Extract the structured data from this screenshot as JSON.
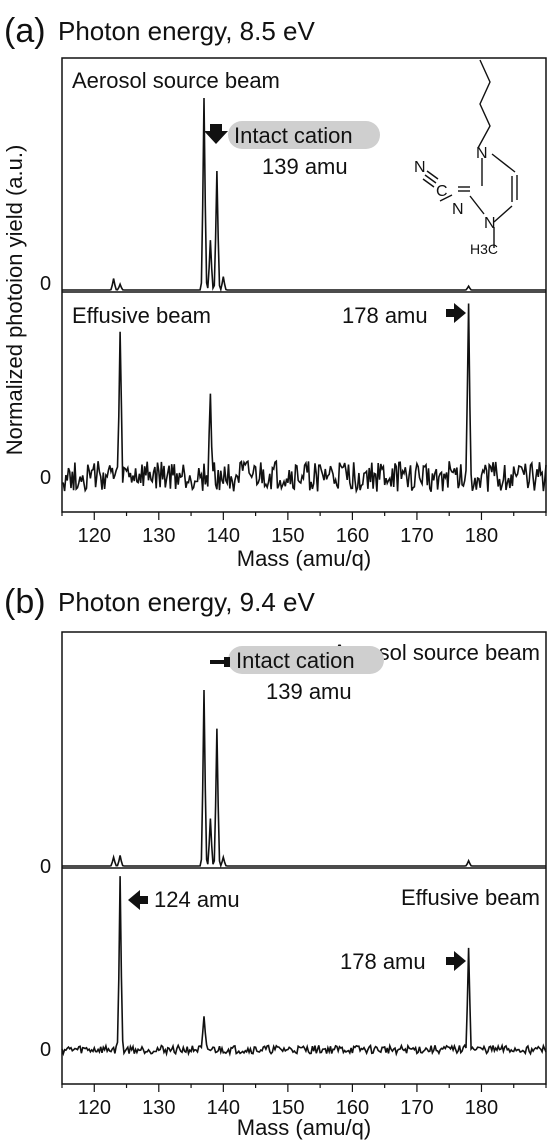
{
  "chart_data": [
    {
      "type": "line",
      "panel_label": "(a)",
      "title": "Photon energy, 8.5 eV",
      "xlabel": "Mass (amu/q)",
      "ylabel": "Normalized photoion yield (a.u.)",
      "xlim": [
        115,
        190
      ],
      "xticks": [
        120,
        130,
        140,
        150,
        160,
        170,
        180
      ],
      "subplots": [
        {
          "name": "Aerosol source beam",
          "zero_label": "0",
          "peaks": [
            {
              "mass": 123,
              "height": 0.06
            },
            {
              "mass": 124,
              "height": 0.03
            },
            {
              "mass": 137,
              "height": 1.0
            },
            {
              "mass": 138,
              "height": 0.26
            },
            {
              "mass": 139,
              "height": 0.62
            },
            {
              "mass": 140,
              "height": 0.07
            },
            {
              "mass": 178,
              "height": 0.02
            }
          ],
          "noise": 0.0,
          "annotations": {
            "arrow_text": "Intact cation",
            "mass_text": "139 amu"
          }
        },
        {
          "name": "Effusive beam",
          "zero_label": "0",
          "peaks": [
            {
              "mass": 124,
              "height": 0.78
            },
            {
              "mass": 138,
              "height": 0.45
            },
            {
              "mass": 178,
              "height": 1.0
            }
          ],
          "noise": 0.18,
          "annotations": {
            "arrow_text": "178 amu"
          }
        }
      ]
    },
    {
      "type": "line",
      "panel_label": "(b)",
      "title": "Photon energy, 9.4 eV",
      "xlabel": "Mass (amu/q)",
      "ylabel": "Normalized photoion yield (a.u.)",
      "xlim": [
        115,
        190
      ],
      "xticks": [
        120,
        130,
        140,
        150,
        160,
        170,
        180
      ],
      "subplots": [
        {
          "name": "Aerosol source beam",
          "zero_label": "0",
          "peaks": [
            {
              "mass": 123,
              "height": 0.05
            },
            {
              "mass": 124,
              "height": 0.06
            },
            {
              "mass": 137,
              "height": 1.0
            },
            {
              "mass": 138,
              "height": 0.27
            },
            {
              "mass": 139,
              "height": 0.78
            },
            {
              "mass": 140,
              "height": 0.05
            },
            {
              "mass": 178,
              "height": 0.03
            }
          ],
          "noise": 0.0,
          "annotations": {
            "arrow_text": "Intact cation",
            "mass_text": "139 amu"
          }
        },
        {
          "name": "Effusive beam",
          "zero_label": "0",
          "peaks": [
            {
              "mass": 124,
              "height": 1.0
            },
            {
              "mass": 137,
              "height": 0.18
            },
            {
              "mass": 178,
              "height": 0.62
            }
          ],
          "noise": 0.05,
          "annotations": {
            "arrow_text_left": "124 amu",
            "arrow_text": "178 amu"
          }
        }
      ]
    }
  ],
  "molecule_atoms": [
    "N",
    "C",
    "N",
    "N",
    "N",
    "H3C"
  ]
}
